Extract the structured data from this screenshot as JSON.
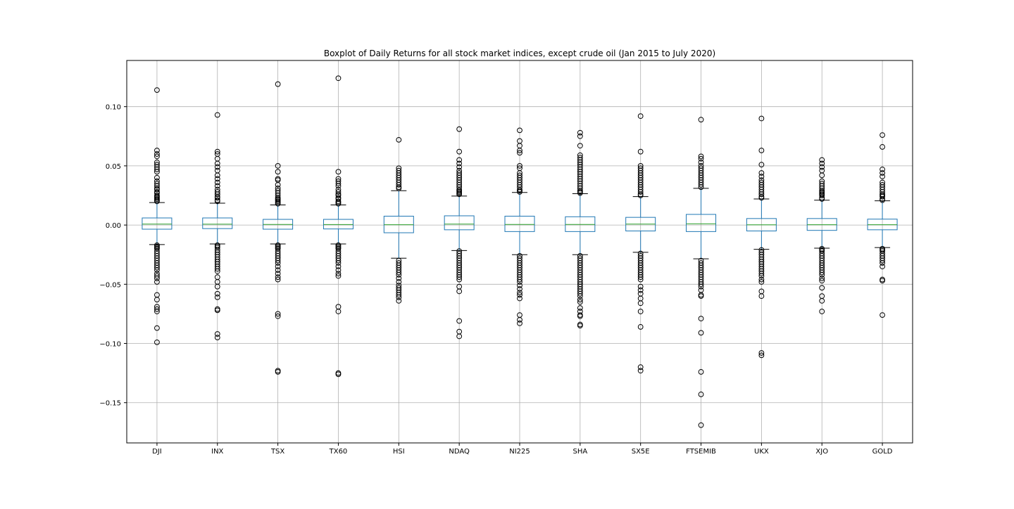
{
  "chart_data": {
    "type": "boxplot",
    "title": "Boxplot of Daily Returns for all stock market indices, except crude oil (Jan 2015 to July 2020)",
    "xlabel": "",
    "ylabel": "",
    "ylim": [
      -0.184,
      0.139
    ],
    "yticks": [
      0.1,
      0.05,
      0.0,
      -0.05,
      -0.1,
      -0.15
    ],
    "ytick_labels": [
      "0.10",
      "0.05",
      "0.00",
      "−0.05",
      "−0.10",
      "−0.15"
    ],
    "grid": true,
    "colors": {
      "box": "#1f77b4",
      "median": "#2ca02c",
      "whisker": "#1f77b4",
      "cap": "#000000",
      "flier": "#000000",
      "grid": "#b0b0b0"
    },
    "categories": [
      "DJI",
      "INX",
      "TSX",
      "TX60",
      "HSI",
      "NDAQ",
      "NI225",
      "SHA",
      "SX5E",
      "FTSEMIB",
      "UKX",
      "XJO",
      "GOLD"
    ],
    "boxes": [
      {
        "name": "DJI",
        "whislo": -0.0165,
        "q1": -0.0035,
        "med": 0.0008,
        "q3": 0.006,
        "whishi": 0.019,
        "fliers": [
          0.114,
          0.063,
          0.06,
          0.058,
          0.053,
          0.051,
          0.049,
          0.047,
          0.045,
          0.04,
          0.037,
          0.035,
          0.033,
          0.031,
          0.03,
          0.028,
          0.027,
          0.025,
          0.024,
          0.023,
          0.022,
          0.021,
          0.02,
          -0.017,
          -0.018,
          -0.019,
          -0.02,
          -0.022,
          -0.024,
          -0.026,
          -0.028,
          -0.03,
          -0.032,
          -0.034,
          -0.036,
          -0.038,
          -0.041,
          -0.043,
          -0.045,
          -0.048,
          -0.059,
          -0.063,
          -0.069,
          -0.071,
          -0.073,
          -0.087,
          -0.099
        ]
      },
      {
        "name": "INX",
        "whislo": -0.016,
        "q1": -0.003,
        "med": 0.0007,
        "q3": 0.006,
        "whishi": 0.0185,
        "fliers": [
          0.093,
          0.062,
          0.06,
          0.056,
          0.052,
          0.049,
          0.046,
          0.042,
          0.039,
          0.036,
          0.033,
          0.03,
          0.028,
          0.026,
          0.024,
          0.023,
          0.021,
          0.02,
          -0.017,
          -0.018,
          -0.019,
          -0.021,
          -0.023,
          -0.025,
          -0.027,
          -0.029,
          -0.031,
          -0.033,
          -0.035,
          -0.037,
          -0.039,
          -0.044,
          -0.048,
          -0.052,
          -0.058,
          -0.061,
          -0.071,
          -0.072,
          -0.092,
          -0.095
        ]
      },
      {
        "name": "TSX",
        "whislo": -0.016,
        "q1": -0.0035,
        "med": 0.0005,
        "q3": 0.0048,
        "whishi": 0.017,
        "fliers": [
          0.119,
          0.05,
          0.045,
          0.039,
          0.038,
          0.034,
          0.031,
          0.029,
          0.027,
          0.025,
          0.023,
          0.022,
          0.021,
          0.02,
          0.019,
          0.018,
          -0.017,
          -0.018,
          -0.019,
          -0.02,
          -0.022,
          -0.024,
          -0.026,
          -0.028,
          -0.03,
          -0.032,
          -0.035,
          -0.038,
          -0.041,
          -0.044,
          -0.046,
          -0.075,
          -0.077,
          -0.123,
          -0.124
        ]
      },
      {
        "name": "TX60",
        "whislo": -0.016,
        "q1": -0.0033,
        "med": 0.0004,
        "q3": 0.0048,
        "whishi": 0.017,
        "fliers": [
          0.124,
          0.045,
          0.039,
          0.037,
          0.035,
          0.033,
          0.03,
          0.028,
          0.026,
          0.025,
          0.023,
          0.022,
          0.02,
          0.019,
          0.018,
          -0.017,
          -0.018,
          -0.019,
          -0.02,
          -0.022,
          -0.024,
          -0.026,
          -0.028,
          -0.03,
          -0.032,
          -0.035,
          -0.038,
          -0.041,
          -0.043,
          -0.069,
          -0.073,
          -0.125,
          -0.126
        ]
      },
      {
        "name": "HSI",
        "whislo": -0.028,
        "q1": -0.0065,
        "med": 0.0003,
        "q3": 0.0075,
        "whishi": 0.029,
        "fliers": [
          0.072,
          0.048,
          0.046,
          0.044,
          0.042,
          0.04,
          0.038,
          0.036,
          0.034,
          0.032,
          0.031,
          -0.03,
          -0.032,
          -0.034,
          -0.036,
          -0.038,
          -0.04,
          -0.042,
          -0.045,
          -0.048,
          -0.051,
          -0.053,
          -0.055,
          -0.057,
          -0.059,
          -0.061,
          -0.064
        ]
      },
      {
        "name": "NDAQ",
        "whislo": -0.0215,
        "q1": -0.004,
        "med": 0.0008,
        "q3": 0.0078,
        "whishi": 0.0245,
        "fliers": [
          0.081,
          0.062,
          0.055,
          0.052,
          0.049,
          0.046,
          0.044,
          0.042,
          0.04,
          0.038,
          0.036,
          0.034,
          0.032,
          0.03,
          0.029,
          0.028,
          0.027,
          0.026,
          -0.022,
          -0.024,
          -0.026,
          -0.028,
          -0.03,
          -0.032,
          -0.034,
          -0.036,
          -0.038,
          -0.04,
          -0.042,
          -0.044,
          -0.046,
          -0.052,
          -0.056,
          -0.081,
          -0.09,
          -0.094
        ]
      },
      {
        "name": "NI225",
        "whislo": -0.025,
        "q1": -0.0055,
        "med": 0.0005,
        "q3": 0.0075,
        "whishi": 0.0275,
        "fliers": [
          0.08,
          0.071,
          0.067,
          0.063,
          0.061,
          0.05,
          0.048,
          0.044,
          0.042,
          0.04,
          0.038,
          0.036,
          0.034,
          0.032,
          0.03,
          0.029,
          0.028,
          -0.026,
          -0.028,
          -0.03,
          -0.032,
          -0.034,
          -0.036,
          -0.038,
          -0.04,
          -0.042,
          -0.044,
          -0.046,
          -0.048,
          -0.051,
          -0.054,
          -0.057,
          -0.059,
          -0.062,
          -0.076,
          -0.08,
          -0.083
        ]
      },
      {
        "name": "SHA",
        "whislo": -0.025,
        "q1": -0.0055,
        "med": 0.0005,
        "q3": 0.007,
        "whishi": 0.0265,
        "fliers": [
          0.078,
          0.075,
          0.067,
          0.059,
          0.057,
          0.055,
          0.053,
          0.051,
          0.049,
          0.047,
          0.045,
          0.043,
          0.041,
          0.039,
          0.037,
          0.035,
          0.033,
          0.031,
          0.029,
          0.028,
          0.027,
          -0.026,
          -0.028,
          -0.03,
          -0.032,
          -0.034,
          -0.036,
          -0.038,
          -0.04,
          -0.042,
          -0.044,
          -0.046,
          -0.048,
          -0.05,
          -0.052,
          -0.054,
          -0.056,
          -0.058,
          -0.06,
          -0.063,
          -0.065,
          -0.07,
          -0.073,
          -0.076,
          -0.077,
          -0.084,
          -0.085
        ]
      },
      {
        "name": "SX5E",
        "whislo": -0.023,
        "q1": -0.005,
        "med": 0.0008,
        "q3": 0.0065,
        "whishi": 0.024,
        "fliers": [
          0.092,
          0.062,
          0.05,
          0.048,
          0.046,
          0.044,
          0.042,
          0.04,
          0.038,
          0.036,
          0.034,
          0.032,
          0.03,
          0.028,
          0.026,
          0.025,
          -0.024,
          -0.026,
          -0.028,
          -0.03,
          -0.032,
          -0.034,
          -0.036,
          -0.038,
          -0.04,
          -0.042,
          -0.044,
          -0.046,
          -0.052,
          -0.055,
          -0.058,
          -0.062,
          -0.066,
          -0.073,
          -0.086,
          -0.12,
          -0.123
        ]
      },
      {
        "name": "FTSEMIB",
        "whislo": -0.0285,
        "q1": -0.0055,
        "med": 0.001,
        "q3": 0.009,
        "whishi": 0.031,
        "fliers": [
          0.089,
          0.058,
          0.056,
          0.053,
          0.05,
          0.048,
          0.046,
          0.044,
          0.042,
          0.04,
          0.038,
          0.036,
          0.034,
          0.032,
          -0.03,
          -0.032,
          -0.034,
          -0.036,
          -0.038,
          -0.04,
          -0.042,
          -0.044,
          -0.046,
          -0.048,
          -0.05,
          -0.052,
          -0.055,
          -0.059,
          -0.06,
          -0.079,
          -0.091,
          -0.124,
          -0.143,
          -0.169
        ]
      },
      {
        "name": "UKX",
        "whislo": -0.0205,
        "q1": -0.005,
        "med": 0.0002,
        "q3": 0.0055,
        "whishi": 0.022,
        "fliers": [
          0.09,
          0.063,
          0.051,
          0.044,
          0.041,
          0.038,
          0.036,
          0.034,
          0.032,
          0.03,
          0.028,
          0.026,
          0.024,
          0.023,
          -0.021,
          -0.023,
          -0.025,
          -0.027,
          -0.029,
          -0.031,
          -0.033,
          -0.035,
          -0.037,
          -0.039,
          -0.041,
          -0.043,
          -0.046,
          -0.048,
          -0.056,
          -0.06,
          -0.108,
          -0.11
        ]
      },
      {
        "name": "XJO",
        "whislo": -0.0195,
        "q1": -0.0045,
        "med": 0.0003,
        "q3": 0.0055,
        "whishi": 0.021,
        "fliers": [
          0.055,
          0.052,
          0.049,
          0.046,
          0.042,
          0.037,
          0.035,
          0.033,
          0.031,
          0.029,
          0.028,
          0.027,
          0.026,
          0.025,
          0.023,
          0.022,
          -0.02,
          -0.021,
          -0.022,
          -0.024,
          -0.026,
          -0.028,
          -0.03,
          -0.032,
          -0.034,
          -0.036,
          -0.038,
          -0.04,
          -0.042,
          -0.045,
          -0.047,
          -0.053,
          -0.06,
          -0.064,
          -0.073
        ]
      },
      {
        "name": "GOLD",
        "whislo": -0.019,
        "q1": -0.004,
        "med": 0.0003,
        "q3": 0.005,
        "whishi": 0.0205,
        "fliers": [
          0.076,
          0.066,
          0.047,
          0.044,
          0.041,
          0.036,
          0.034,
          0.032,
          0.03,
          0.028,
          0.026,
          0.025,
          0.024,
          0.022,
          0.021,
          -0.02,
          -0.021,
          -0.022,
          -0.024,
          -0.026,
          -0.028,
          -0.03,
          -0.032,
          -0.035,
          -0.046,
          -0.047,
          -0.076
        ]
      }
    ]
  }
}
